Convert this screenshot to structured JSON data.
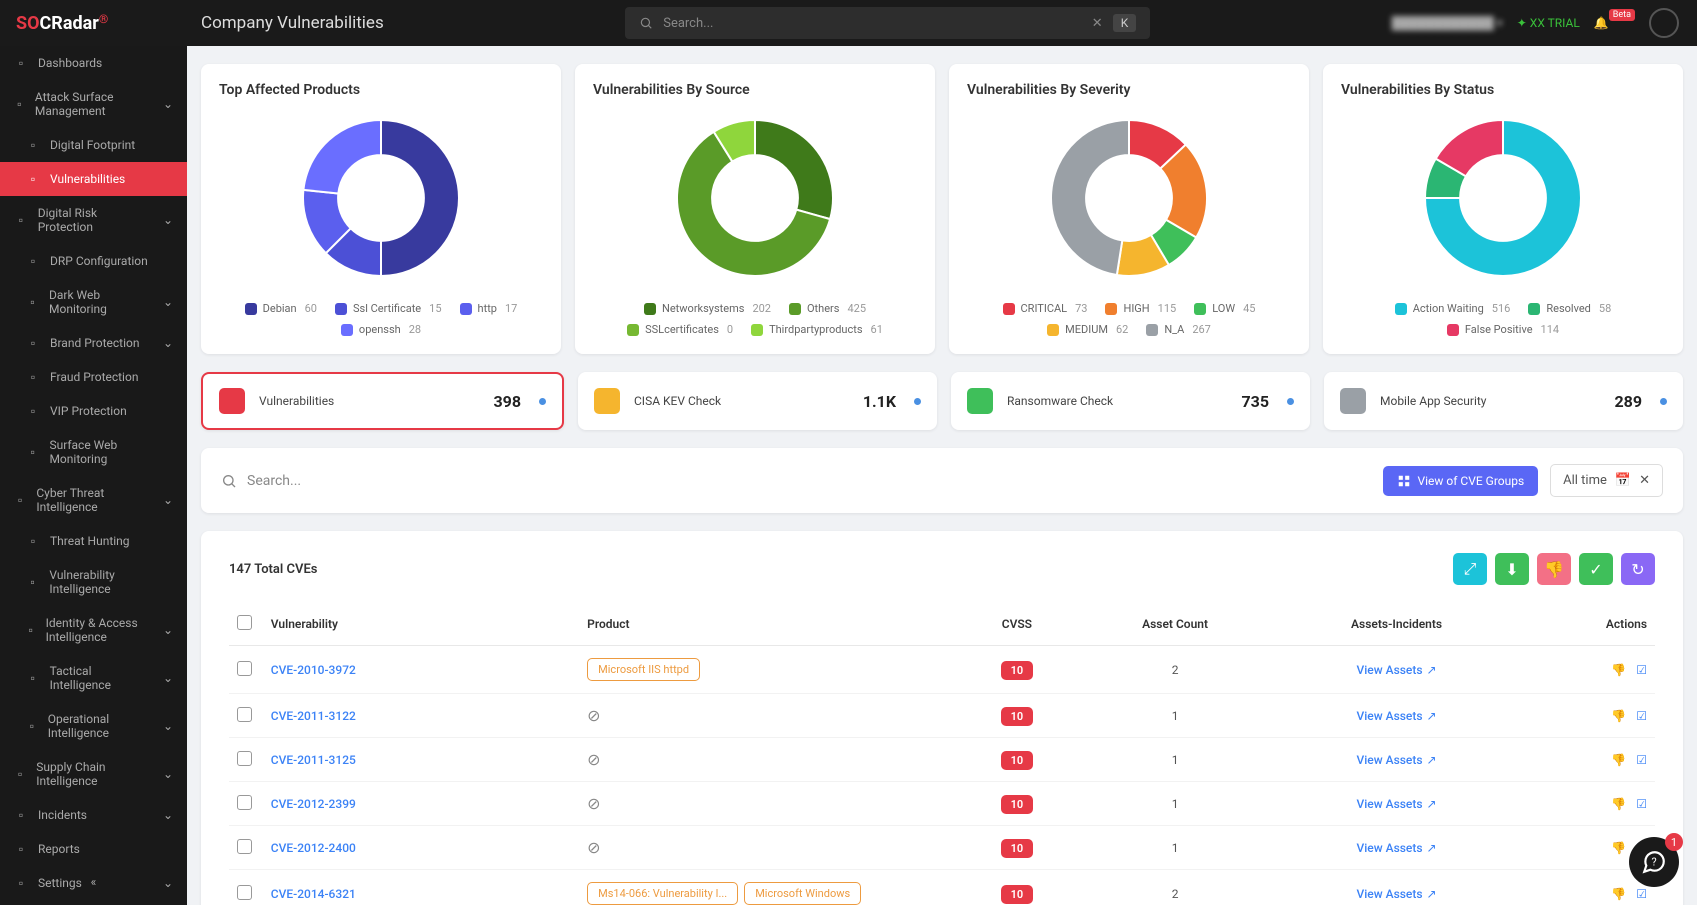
{
  "header": {
    "logo_prefix": "S",
    "logo_mid": "O",
    "logo_suffix": "CRadar",
    "page_title": "Company Vulnerabilities",
    "search_placeholder": "Search...",
    "search_key": "K",
    "trial_label": "XX TRIAL",
    "badge_label": "Beta"
  },
  "sidebar": {
    "items": [
      {
        "label": "Dashboards",
        "icon": "dashboard-icon",
        "expandable": false
      },
      {
        "label": "Attack Surface Management",
        "icon": "target-icon",
        "expandable": true
      },
      {
        "label": "Digital Footprint",
        "icon": "footprint-icon",
        "sub": true
      },
      {
        "label": "Vulnerabilities",
        "icon": "bug-icon",
        "sub": true,
        "active": true
      },
      {
        "label": "Digital Risk Protection",
        "icon": "shield-icon",
        "expandable": true
      },
      {
        "label": "DRP Configuration",
        "icon": "config-icon",
        "sub": true
      },
      {
        "label": "Dark Web Monitoring",
        "icon": "eye-icon",
        "expandable": true,
        "sub": true
      },
      {
        "label": "Brand Protection",
        "icon": "brand-icon",
        "expandable": true,
        "sub": true
      },
      {
        "label": "Fraud Protection",
        "icon": "fraud-icon",
        "sub": true
      },
      {
        "label": "VIP Protection",
        "icon": "vip-icon",
        "sub": true
      },
      {
        "label": "Surface Web Monitoring",
        "icon": "web-icon",
        "sub": true
      },
      {
        "label": "Cyber Threat Intelligence",
        "icon": "cti-icon",
        "expandable": true
      },
      {
        "label": "Threat Hunting",
        "icon": "hunt-icon",
        "sub": true
      },
      {
        "label": "Vulnerability Intelligence",
        "icon": "vuln-intel-icon",
        "sub": true
      },
      {
        "label": "Identity & Access Intelligence",
        "icon": "identity-icon",
        "expandable": true,
        "sub": true
      },
      {
        "label": "Tactical Intelligence",
        "icon": "tactical-icon",
        "expandable": true,
        "sub": true
      },
      {
        "label": "Operational Intelligence",
        "icon": "ops-icon",
        "expandable": true,
        "sub": true
      },
      {
        "label": "Supply Chain Intelligence",
        "icon": "supply-icon",
        "expandable": true
      },
      {
        "label": "Incidents",
        "icon": "incident-icon",
        "expandable": true
      },
      {
        "label": "Reports",
        "icon": "report-icon"
      },
      {
        "label": "Settings",
        "icon": "gear-icon",
        "expandable": true
      }
    ]
  },
  "charts": {
    "products": {
      "title": "Top Affected Products",
      "type": "donut",
      "inner_ratio": 0.55,
      "background": "#ffffff",
      "items": [
        {
          "label": "Debian",
          "value": 60,
          "color": "#383a9e"
        },
        {
          "label": "Ssl Certificate",
          "value": 15,
          "color": "#4c50d6"
        },
        {
          "label": "http",
          "value": 17,
          "color": "#5b5fee"
        },
        {
          "label": "openssh",
          "value": 28,
          "color": "#6a6eff"
        }
      ]
    },
    "source": {
      "title": "Vulnerabilities By Source",
      "type": "donut",
      "inner_ratio": 0.55,
      "background": "#ffffff",
      "items": [
        {
          "label": "Networksystems",
          "value": 202,
          "color": "#3f7a1a"
        },
        {
          "label": "Others",
          "value": 425,
          "color": "#5a9b28"
        },
        {
          "label": "SSLcertificates",
          "value": 0,
          "color": "#76b832"
        },
        {
          "label": "Thirdpartyproducts",
          "value": 61,
          "color": "#8fd63c"
        }
      ]
    },
    "severity": {
      "title": "Vulnerabilities By Severity",
      "type": "donut",
      "inner_ratio": 0.55,
      "background": "#ffffff",
      "items": [
        {
          "label": "CRITICAL",
          "value": 73,
          "color": "#e63946"
        },
        {
          "label": "HIGH",
          "value": 115,
          "color": "#f07f2e"
        },
        {
          "label": "LOW",
          "value": 45,
          "color": "#3fbf5a"
        },
        {
          "label": "MEDIUM",
          "value": 62,
          "color": "#f5b52e"
        },
        {
          "label": "N_A",
          "value": 267,
          "color": "#9aa0a6"
        }
      ]
    },
    "status": {
      "title": "Vulnerabilities By Status",
      "type": "donut",
      "inner_ratio": 0.55,
      "background": "#ffffff",
      "items": [
        {
          "label": "Action Waiting",
          "value": 516,
          "color": "#1cc3d9"
        },
        {
          "label": "Resolved",
          "value": 58,
          "color": "#2bb673"
        },
        {
          "label": "False Positive",
          "value": 114,
          "color": "#e63964"
        }
      ]
    }
  },
  "stats": [
    {
      "label": "Vulnerabilities",
      "value": "398",
      "color": "#e63946",
      "active": true
    },
    {
      "label": "CISA KEV Check",
      "value": "1.1K",
      "color": "#f5b52e"
    },
    {
      "label": "Ransomware Check",
      "value": "735",
      "color": "#3fbf5a"
    },
    {
      "label": "Mobile App Security",
      "value": "289",
      "color": "#9aa0a6"
    }
  ],
  "filter": {
    "search_placeholder": "Search...",
    "view_groups_label": "View of CVE Groups",
    "time_label": "All time"
  },
  "table": {
    "total_label": "147 Total CVEs",
    "action_colors": [
      "#1cc3d9",
      "#3fbf5a",
      "#f37086",
      "#3fbf5a",
      "#8a68f5"
    ],
    "columns": [
      "Vulnerability",
      "Product",
      "CVSS",
      "Asset Count",
      "Assets-Incidents",
      "Actions"
    ],
    "view_assets_label": "View Assets",
    "rows": [
      {
        "cve": "CVE-2010-3972",
        "products": [
          "Microsoft IIS httpd"
        ],
        "cvss": "10",
        "asset_count": "2"
      },
      {
        "cve": "CVE-2011-3122",
        "products": [],
        "cvss": "10",
        "asset_count": "1"
      },
      {
        "cve": "CVE-2011-3125",
        "products": [],
        "cvss": "10",
        "asset_count": "1"
      },
      {
        "cve": "CVE-2012-2399",
        "products": [],
        "cvss": "10",
        "asset_count": "1"
      },
      {
        "cve": "CVE-2012-2400",
        "products": [],
        "cvss": "10",
        "asset_count": "1"
      },
      {
        "cve": "CVE-2014-6321",
        "products": [
          "Ms14-066: Vulnerability I...",
          "Microsoft Windows"
        ],
        "cvss": "10",
        "asset_count": "2"
      }
    ]
  },
  "help_badge": "1"
}
